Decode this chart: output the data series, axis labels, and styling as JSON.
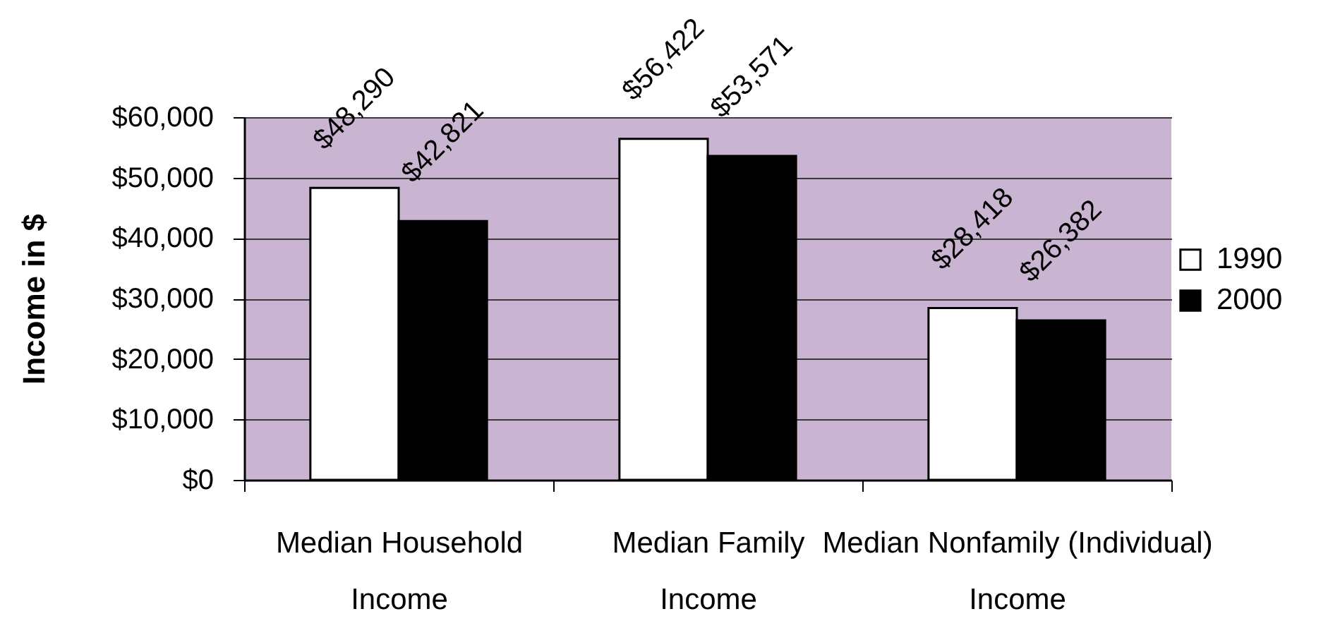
{
  "chart_data": {
    "type": "bar",
    "ylabel": "Income in $",
    "categories": [
      "Median Household Income",
      "Median Family Income",
      "Median Nonfamily (Individual) Income"
    ],
    "series": [
      {
        "name": "1990",
        "color": "#ffffff",
        "values": [
          48290,
          56422,
          28418
        ],
        "value_labels": [
          "$48,290",
          "$56,422",
          "$28,418"
        ]
      },
      {
        "name": "2000",
        "color": "#000000",
        "values": [
          42821,
          53571,
          26382
        ],
        "value_labels": [
          "$42,821",
          "$53,571",
          "$26,382"
        ]
      }
    ],
    "ylim": [
      0,
      60000
    ],
    "yticks": [
      {
        "value": 0,
        "label": "$0"
      },
      {
        "value": 10000,
        "label": "$10,000"
      },
      {
        "value": 20000,
        "label": "$20,000"
      },
      {
        "value": 30000,
        "label": "$30,000"
      },
      {
        "value": 40000,
        "label": "$40,000"
      },
      {
        "value": 50000,
        "label": "$50,000"
      },
      {
        "value": 60000,
        "label": "$60,000"
      }
    ],
    "grid": "y",
    "legend": "right"
  }
}
